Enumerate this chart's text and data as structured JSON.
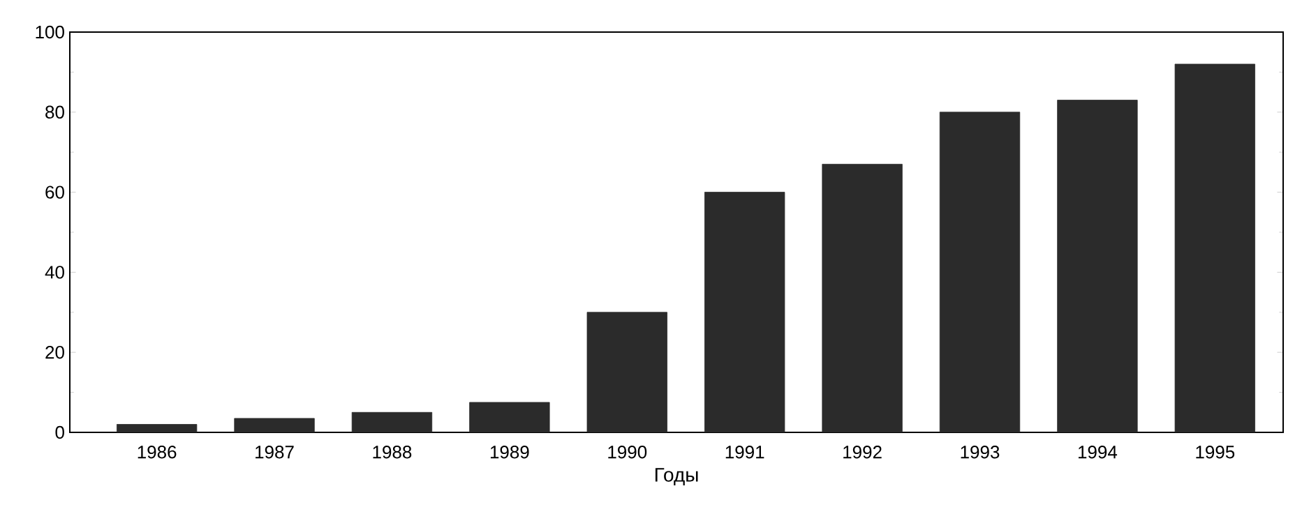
{
  "chart_data": {
    "type": "bar",
    "xlabel": "Годы",
    "categories": [
      "1986",
      "1987",
      "1988",
      "1989",
      "1990",
      "1991",
      "1992",
      "1993",
      "1994",
      "1995"
    ],
    "values": [
      2,
      3.5,
      5,
      7.5,
      30,
      60,
      67,
      80,
      83,
      92
    ],
    "color": "#2b2b2b",
    "ylim": [
      0,
      100
    ],
    "yticks": [
      0,
      20,
      40,
      60,
      80,
      100
    ]
  }
}
